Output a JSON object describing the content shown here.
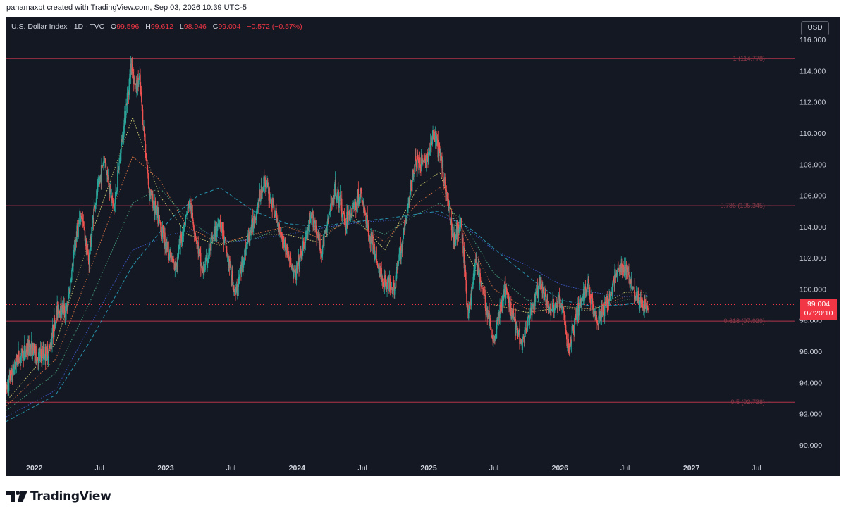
{
  "credit": "panamaxbt created with TradingView.com, Sep 03, 2026 10:39 UTC-5",
  "legend": {
    "title": "U.S. Dollar Index · 1D · TVC",
    "open_label": "O",
    "open": "99.596",
    "high_label": "H",
    "high": "99.612",
    "low_label": "L",
    "low": "98.946",
    "close_label": "C",
    "close": "99.004",
    "change": "−0.572 (−0.57%)"
  },
  "currency": "USD",
  "price_label": {
    "price": "99.004",
    "countdown": "07:20:10"
  },
  "brand": "TradingView",
  "colors": {
    "background": "#141823",
    "up": "#26a69a",
    "down": "#ef5350",
    "fib": "#b2344a",
    "text": "#d1d4dc"
  },
  "chart_data": {
    "type": "candlestick",
    "title": "U.S. Dollar Index · 1D · TVC",
    "ylim": [
      89.0,
      117.0
    ],
    "x_start": "2021-10-15",
    "x_end": "2027-10-15",
    "y_ticks": [
      "90.000",
      "92.000",
      "94.000",
      "96.000",
      "98.000",
      "100.000",
      "102.000",
      "104.000",
      "106.000",
      "108.000",
      "110.000",
      "112.000",
      "114.000",
      "116.000"
    ],
    "x_ticks": [
      {
        "date": "2022-01-01",
        "label": "2022",
        "bold": true
      },
      {
        "date": "2022-07-01",
        "label": "Jul",
        "bold": false
      },
      {
        "date": "2023-01-01",
        "label": "2023",
        "bold": true
      },
      {
        "date": "2023-07-01",
        "label": "Jul",
        "bold": false
      },
      {
        "date": "2024-01-01",
        "label": "2024",
        "bold": true
      },
      {
        "date": "2024-07-01",
        "label": "Jul",
        "bold": false
      },
      {
        "date": "2025-01-01",
        "label": "2025",
        "bold": true
      },
      {
        "date": "2025-07-01",
        "label": "Jul",
        "bold": false
      },
      {
        "date": "2026-01-01",
        "label": "2026",
        "bold": true
      },
      {
        "date": "2026-07-01",
        "label": "Jul",
        "bold": false
      },
      {
        "date": "2027-01-01",
        "label": "2027",
        "bold": true
      },
      {
        "date": "2027-07-01",
        "label": "Jul",
        "bold": false
      }
    ],
    "fib_levels": [
      {
        "level": 114.778,
        "label": "1 (114.778)"
      },
      {
        "level": 105.345,
        "label": "0.786 (105.345)"
      },
      {
        "level": 97.939,
        "label": "0.618 (97.939)"
      },
      {
        "level": 92.738,
        "label": "0.5 (92.738)"
      }
    ],
    "last_price": 99.004,
    "price_path": [
      [
        "2021-10-15",
        93.6
      ],
      [
        "2021-11-15",
        95.5
      ],
      [
        "2021-12-20",
        96.3
      ],
      [
        "2022-01-10",
        95.6
      ],
      [
        "2022-02-10",
        96.0
      ],
      [
        "2022-03-07",
        98.8
      ],
      [
        "2022-04-01",
        98.6
      ],
      [
        "2022-04-28",
        103.5
      ],
      [
        "2022-05-12",
        104.8
      ],
      [
        "2022-06-01",
        101.8
      ],
      [
        "2022-06-15",
        105.0
      ],
      [
        "2022-07-14",
        108.5
      ],
      [
        "2022-08-10",
        105.0
      ],
      [
        "2022-09-01",
        109.5
      ],
      [
        "2022-09-28",
        114.5
      ],
      [
        "2022-10-10",
        112.8
      ],
      [
        "2022-10-20",
        113.5
      ],
      [
        "2022-11-15",
        106.5
      ],
      [
        "2022-12-15",
        104.2
      ],
      [
        "2023-01-26",
        101.3
      ],
      [
        "2023-03-08",
        105.6
      ],
      [
        "2023-04-14",
        101.0
      ],
      [
        "2023-05-31",
        104.5
      ],
      [
        "2023-07-14",
        99.6
      ],
      [
        "2023-08-10",
        102.5
      ],
      [
        "2023-10-03",
        107.0
      ],
      [
        "2023-11-20",
        103.4
      ],
      [
        "2023-12-27",
        100.8
      ],
      [
        "2024-02-14",
        104.8
      ],
      [
        "2024-03-08",
        102.3
      ],
      [
        "2024-04-16",
        106.5
      ],
      [
        "2024-05-15",
        104.3
      ],
      [
        "2024-06-26",
        106.1
      ],
      [
        "2024-07-17",
        103.8
      ],
      [
        "2024-08-27",
        100.5
      ],
      [
        "2024-09-27",
        100.2
      ],
      [
        "2024-10-31",
        104.5
      ],
      [
        "2024-11-22",
        108.0
      ],
      [
        "2024-12-31",
        108.4
      ],
      [
        "2025-01-13",
        110.0
      ],
      [
        "2025-02-03",
        108.5
      ],
      [
        "2025-03-11",
        103.3
      ],
      [
        "2025-04-01",
        104.2
      ],
      [
        "2025-04-21",
        98.3
      ],
      [
        "2025-05-12",
        101.9
      ],
      [
        "2025-06-30",
        96.7
      ],
      [
        "2025-07-31",
        100.0
      ],
      [
        "2025-08-29",
        97.9
      ],
      [
        "2025-09-17",
        96.5
      ],
      [
        "2025-11-05",
        100.3
      ],
      [
        "2025-12-01",
        98.8
      ],
      [
        "2026-01-05",
        99.2
      ],
      [
        "2026-01-25",
        96.0
      ],
      [
        "2026-02-15",
        98.5
      ],
      [
        "2026-03-20",
        100.2
      ],
      [
        "2026-04-15",
        97.9
      ],
      [
        "2026-05-15",
        99.2
      ],
      [
        "2026-06-10",
        101.3
      ],
      [
        "2026-07-10",
        101.0
      ],
      [
        "2026-08-01",
        99.6
      ],
      [
        "2026-08-20",
        98.8
      ],
      [
        "2026-09-03",
        99.0
      ]
    ],
    "moving_averages": [
      {
        "color": "#e7e07a",
        "style": "dotted",
        "points": [
          [
            "2021-10-15",
            92.8
          ],
          [
            "2022-03-01",
            96.5
          ],
          [
            "2022-06-01",
            103.0
          ],
          [
            "2022-10-01",
            111.0
          ],
          [
            "2022-12-15",
            106.0
          ],
          [
            "2023-03-01",
            103.5
          ],
          [
            "2023-06-01",
            102.8
          ],
          [
            "2023-09-01",
            103.5
          ],
          [
            "2023-12-01",
            103.5
          ],
          [
            "2024-03-01",
            103.0
          ],
          [
            "2024-06-01",
            104.8
          ],
          [
            "2024-09-01",
            102.5
          ],
          [
            "2024-12-01",
            106.5
          ],
          [
            "2025-02-01",
            107.5
          ],
          [
            "2025-04-01",
            103.0
          ],
          [
            "2025-07-01",
            99.0
          ],
          [
            "2025-10-01",
            98.5
          ],
          [
            "2026-01-01",
            98.8
          ],
          [
            "2026-04-01",
            98.6
          ],
          [
            "2026-07-01",
            99.8
          ],
          [
            "2026-09-03",
            99.8
          ]
        ]
      },
      {
        "color": "#ef7b45",
        "style": "dotted",
        "points": [
          [
            "2021-10-15",
            92.5
          ],
          [
            "2022-03-01",
            95.5
          ],
          [
            "2022-06-01",
            101.0
          ],
          [
            "2022-10-01",
            108.5
          ],
          [
            "2022-12-15",
            107.0
          ],
          [
            "2023-03-01",
            104.0
          ],
          [
            "2023-06-01",
            102.9
          ],
          [
            "2023-09-01",
            103.5
          ],
          [
            "2023-12-01",
            104.0
          ],
          [
            "2024-03-01",
            103.3
          ],
          [
            "2024-06-01",
            104.5
          ],
          [
            "2024-09-01",
            103.0
          ],
          [
            "2024-12-01",
            105.5
          ],
          [
            "2025-02-01",
            106.5
          ],
          [
            "2025-04-01",
            104.0
          ],
          [
            "2025-07-01",
            100.0
          ],
          [
            "2025-10-01",
            98.7
          ],
          [
            "2026-01-01",
            98.9
          ],
          [
            "2026-04-01",
            98.7
          ],
          [
            "2026-07-01",
            99.5
          ],
          [
            "2026-09-03",
            99.7
          ]
        ]
      },
      {
        "color": "#4caf82",
        "style": "dotted",
        "points": [
          [
            "2021-10-15",
            92.2
          ],
          [
            "2022-03-01",
            94.6
          ],
          [
            "2022-06-01",
            99.0
          ],
          [
            "2022-10-01",
            105.5
          ],
          [
            "2022-12-15",
            106.5
          ],
          [
            "2023-03-01",
            104.5
          ],
          [
            "2023-06-01",
            103.0
          ],
          [
            "2023-09-01",
            103.2
          ],
          [
            "2023-12-01",
            104.0
          ],
          [
            "2024-03-01",
            103.6
          ],
          [
            "2024-06-01",
            104.3
          ],
          [
            "2024-09-01",
            103.5
          ],
          [
            "2024-12-01",
            104.8
          ],
          [
            "2025-02-01",
            105.5
          ],
          [
            "2025-04-01",
            104.5
          ],
          [
            "2025-07-01",
            101.0
          ],
          [
            "2025-10-01",
            99.3
          ],
          [
            "2026-01-01",
            98.9
          ],
          [
            "2026-04-01",
            98.7
          ],
          [
            "2026-07-01",
            99.3
          ],
          [
            "2026-09-03",
            99.5
          ]
        ]
      },
      {
        "color": "#2aa8c4",
        "style": "dashed",
        "points": [
          [
            "2021-10-15",
            91.5
          ],
          [
            "2022-03-01",
            93.2
          ],
          [
            "2022-06-01",
            96.5
          ],
          [
            "2022-10-01",
            101.5
          ],
          [
            "2023-01-15",
            104.5
          ],
          [
            "2023-04-01",
            106.0
          ],
          [
            "2023-06-01",
            106.5
          ],
          [
            "2023-09-01",
            105.0
          ],
          [
            "2023-12-01",
            104.2
          ],
          [
            "2024-03-01",
            104.0
          ],
          [
            "2024-06-01",
            104.3
          ],
          [
            "2024-09-01",
            104.5
          ],
          [
            "2024-12-01",
            104.8
          ],
          [
            "2025-02-01",
            105.0
          ],
          [
            "2025-05-01",
            103.8
          ],
          [
            "2025-08-01",
            102.0
          ],
          [
            "2025-11-01",
            100.3
          ],
          [
            "2026-01-01",
            99.3
          ],
          [
            "2026-04-01",
            98.9
          ],
          [
            "2026-07-01",
            99.0
          ],
          [
            "2026-09-03",
            99.2
          ]
        ]
      },
      {
        "color": "#3f5fd8",
        "style": "dotted",
        "points": [
          [
            "2021-10-15",
            91.8
          ],
          [
            "2022-03-01",
            93.5
          ],
          [
            "2022-06-01",
            97.5
          ],
          [
            "2022-10-01",
            102.5
          ],
          [
            "2023-01-15",
            103.5
          ],
          [
            "2023-04-01",
            103.8
          ],
          [
            "2023-07-01",
            103.0
          ],
          [
            "2023-10-01",
            103.3
          ],
          [
            "2024-01-01",
            103.6
          ],
          [
            "2024-04-01",
            104.0
          ],
          [
            "2024-07-01",
            104.3
          ],
          [
            "2024-10-01",
            104.4
          ],
          [
            "2025-01-01",
            105.0
          ],
          [
            "2025-04-01",
            104.2
          ],
          [
            "2025-07-01",
            102.5
          ],
          [
            "2025-10-01",
            101.5
          ],
          [
            "2026-01-01",
            100.3
          ],
          [
            "2026-04-01",
            99.8
          ],
          [
            "2026-07-01",
            99.5
          ],
          [
            "2026-09-03",
            99.6
          ]
        ]
      }
    ]
  }
}
